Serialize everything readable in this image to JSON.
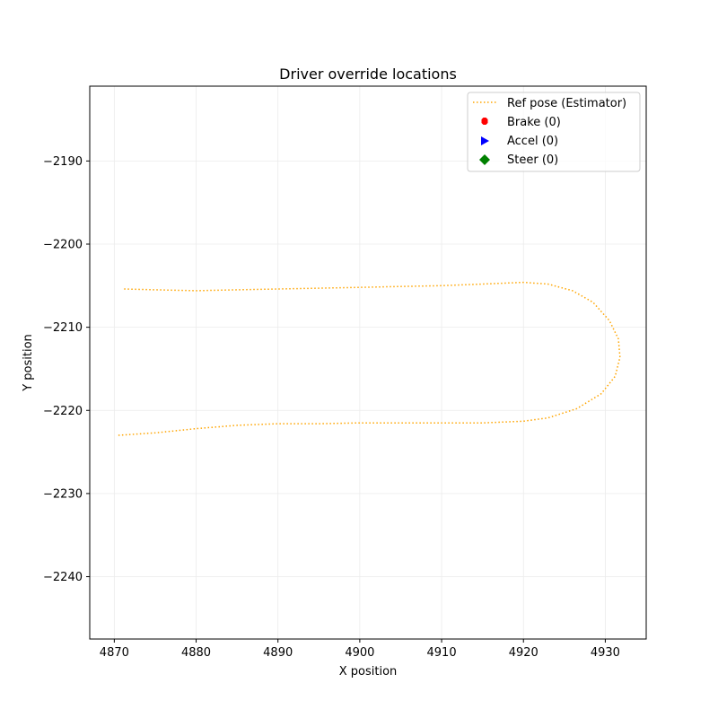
{
  "chart_data": {
    "type": "line",
    "title": "Driver override locations",
    "xlabel": "X position",
    "ylabel": "Y position",
    "xlim": [
      4867,
      4935
    ],
    "ylim": [
      -2247.5,
      -2181.0
    ],
    "xticks": [
      4870,
      4880,
      4890,
      4900,
      4910,
      4920,
      4930
    ],
    "yticks": [
      -2240,
      -2230,
      -2220,
      -2210,
      -2200,
      -2190
    ],
    "grid": true,
    "legend_position": "top-right",
    "series": [
      {
        "name": "Ref pose (Estimator)",
        "color": "#ffa500",
        "style": "dotted",
        "points": [
          [
            4871.2,
            -2205.4
          ],
          [
            4875,
            -2205.5
          ],
          [
            4880,
            -2205.6
          ],
          [
            4885,
            -2205.5
          ],
          [
            4890,
            -2205.4
          ],
          [
            4895,
            -2205.3
          ],
          [
            4900,
            -2205.2
          ],
          [
            4905,
            -2205.1
          ],
          [
            4910,
            -2205.0
          ],
          [
            4915,
            -2204.8
          ],
          [
            4920,
            -2204.6
          ],
          [
            4923,
            -2204.8
          ],
          [
            4926,
            -2205.6
          ],
          [
            4928.5,
            -2207.0
          ],
          [
            4930.5,
            -2209.2
          ],
          [
            4931.6,
            -2211.4
          ],
          [
            4931.8,
            -2213.6
          ],
          [
            4931.2,
            -2215.9
          ],
          [
            4929.5,
            -2218.0
          ],
          [
            4926.5,
            -2219.8
          ],
          [
            4923,
            -2220.9
          ],
          [
            4920,
            -2221.3
          ],
          [
            4915,
            -2221.5
          ],
          [
            4910,
            -2221.5
          ],
          [
            4905,
            -2221.5
          ],
          [
            4900,
            -2221.5
          ],
          [
            4895,
            -2221.6
          ],
          [
            4890,
            -2221.6
          ],
          [
            4885,
            -2221.8
          ],
          [
            4880,
            -2222.2
          ],
          [
            4875,
            -2222.7
          ],
          [
            4870.3,
            -2223.0
          ]
        ]
      },
      {
        "name": "Brake (0)",
        "color": "#ff0000",
        "marker": "octagon",
        "points": []
      },
      {
        "name": "Accel (0)",
        "color": "#0000ff",
        "marker": "triangle-right",
        "points": []
      },
      {
        "name": "Steer (0)",
        "color": "#008000",
        "marker": "diamond",
        "points": []
      }
    ]
  }
}
